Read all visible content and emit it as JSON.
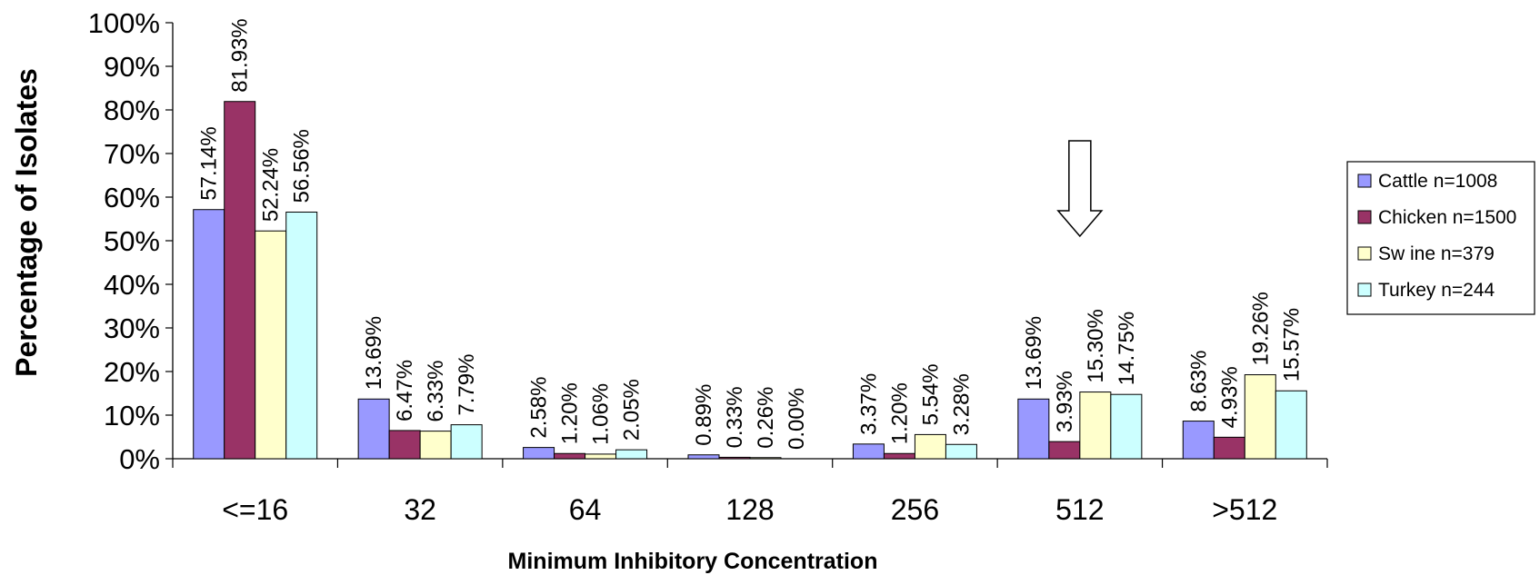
{
  "chart_data": {
    "type": "bar",
    "title": "",
    "xlabel": "Minimum Inhibitory Concentration",
    "ylabel": "Percentage of Isolates",
    "ylim": [
      0,
      100
    ],
    "y_ticks": [
      "0%",
      "10%",
      "20%",
      "30%",
      "40%",
      "50%",
      "60%",
      "70%",
      "80%",
      "90%",
      "100%"
    ],
    "categories": [
      "<=16",
      "32",
      "64",
      "128",
      "256",
      "512",
      ">512"
    ],
    "series": [
      {
        "name": "Cattle n=1008",
        "color": "#9999FF",
        "values": [
          57.14,
          13.69,
          2.58,
          0.89,
          3.37,
          13.69,
          8.63
        ],
        "labels": [
          "57.14%",
          "13.69%",
          "2.58%",
          "0.89%",
          "3.37%",
          "13.69%",
          "8.63%"
        ]
      },
      {
        "name": "Chicken n=1500",
        "color": "#993366",
        "values": [
          81.93,
          6.47,
          1.2,
          0.33,
          1.2,
          3.93,
          4.93
        ],
        "labels": [
          "81.93%",
          "6.47%",
          "1.20%",
          "0.33%",
          "1.20%",
          "3.93%",
          "4.93%"
        ]
      },
      {
        "name": "Sw ine n=379",
        "color": "#FFFFCC",
        "values": [
          52.24,
          6.33,
          1.06,
          0.26,
          5.54,
          15.3,
          19.26
        ],
        "labels": [
          "52.24%",
          "6.33%",
          "1.06%",
          "0.26%",
          "5.54%",
          "15.30%",
          "19.26%"
        ]
      },
      {
        "name": "Turkey n=244",
        "color": "#CCFFFF",
        "values": [
          56.56,
          7.79,
          2.05,
          0.0,
          3.28,
          14.75,
          15.57
        ],
        "labels": [
          "56.56%",
          "7.79%",
          "2.05%",
          "0.00%",
          "3.28%",
          "14.75%",
          "15.57%"
        ]
      }
    ],
    "annotation": {
      "type": "down-arrow",
      "category": "512"
    },
    "legend_position": "right",
    "grid": false
  }
}
